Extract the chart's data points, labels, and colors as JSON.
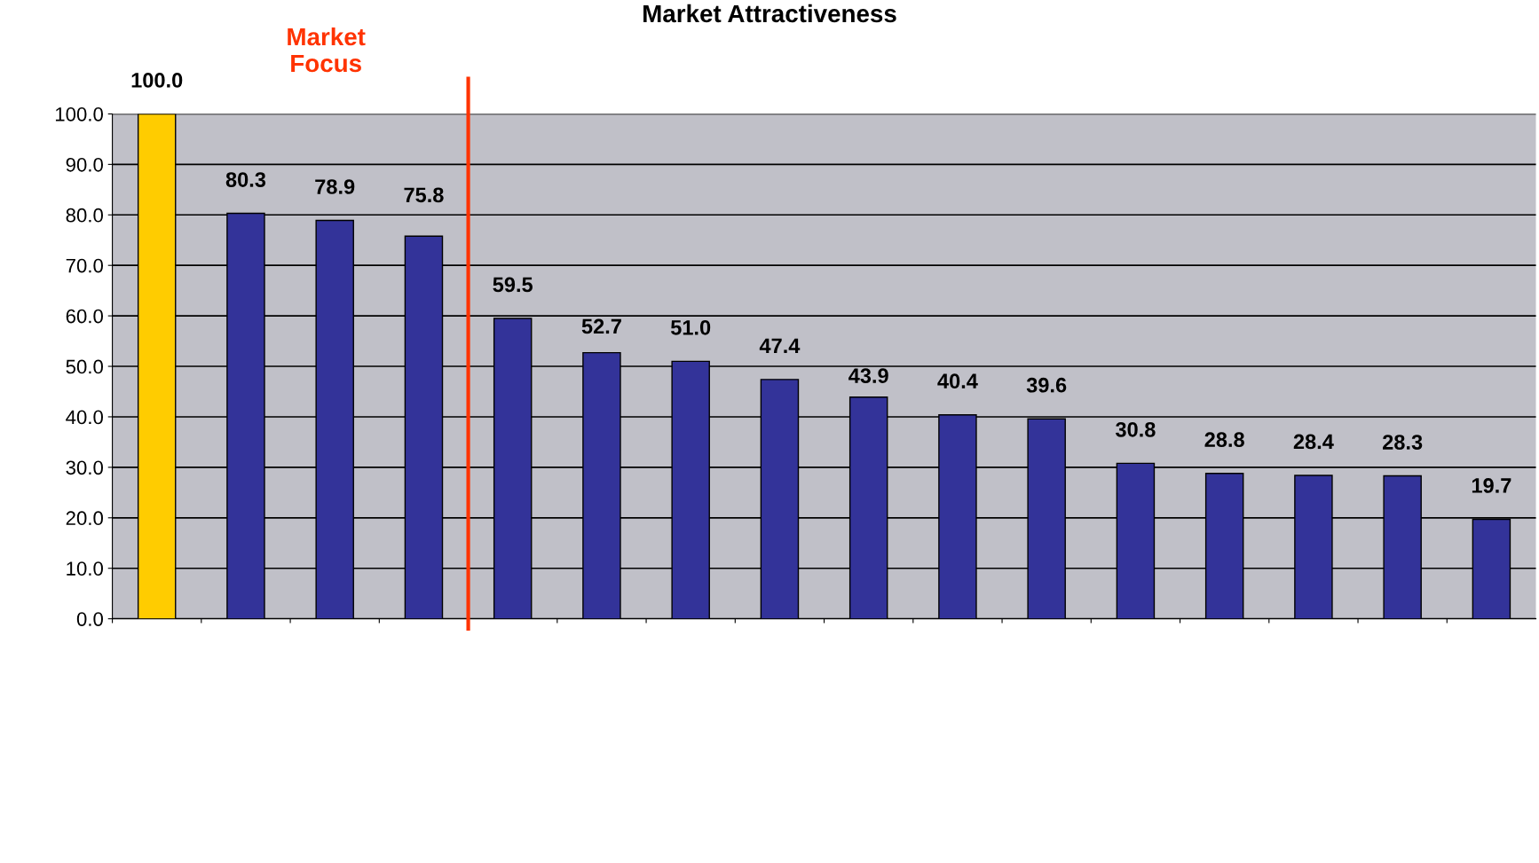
{
  "chart_data": {
    "type": "bar",
    "title": "Market Attractiveness",
    "categories": [
      null,
      null,
      null,
      null,
      null,
      null,
      null,
      null,
      null,
      null,
      null,
      null,
      null,
      null,
      null,
      null
    ],
    "values": [
      100.0,
      80.3,
      78.9,
      75.8,
      59.5,
      52.7,
      51.0,
      47.4,
      43.9,
      40.4,
      39.6,
      30.8,
      28.8,
      28.4,
      28.3,
      19.7
    ],
    "colors": [
      "#ffcc00",
      "#333399",
      "#333399",
      "#333399",
      "#333399",
      "#333399",
      "#333399",
      "#333399",
      "#333399",
      "#333399",
      "#333399",
      "#333399",
      "#333399",
      "#333399",
      "#333399",
      "#333399"
    ],
    "value_labels": [
      "100.0",
      "80.3",
      "78.9",
      "75.8",
      "59.5",
      "52.7",
      "51.0",
      "47.4",
      "43.9",
      "40.4",
      "39.6",
      "30.8",
      "28.8",
      "28.4",
      "28.3",
      "19.7"
    ],
    "ylim": [
      0,
      100
    ],
    "yticks": [
      {
        "value": 0,
        "label": "0.0"
      },
      {
        "value": 10,
        "label": "10.0"
      },
      {
        "value": 20,
        "label": "20.0"
      },
      {
        "value": 30,
        "label": "30.0"
      },
      {
        "value": 40,
        "label": "40.0"
      },
      {
        "value": 50,
        "label": "50.0"
      },
      {
        "value": 60,
        "label": "60.0"
      },
      {
        "value": 70,
        "label": "70.0"
      },
      {
        "value": 80,
        "label": "80.0"
      },
      {
        "value": 90,
        "label": "90.0"
      },
      {
        "value": 100,
        "label": "100.0"
      }
    ],
    "grid": "y",
    "annotations": [
      "Market\nFocus"
    ]
  }
}
